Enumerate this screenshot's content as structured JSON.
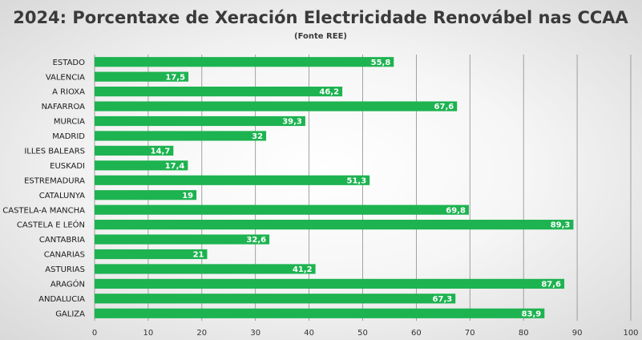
{
  "chart_data": {
    "type": "bar",
    "orientation": "horizontal",
    "title": "2024: Porcentaxe de Xeración Electricidade Renovábel nas CCAA",
    "subtitle": "(Fonte REE)",
    "categories": [
      "ESTADO",
      "VALENCIA",
      "A RIOXA",
      "NAFARROA",
      "MURCIA",
      "MADRID",
      "ILLES BALEARS",
      "EUSKADI",
      "ESTREMADURA",
      "CATALUNYA",
      "CASTELA-A MANCHA",
      "CASTELA E LEÓN",
      "CANTABRIA",
      "CANARIAS",
      "ASTURIAS",
      "ARAGÓN",
      "ANDALUCIA",
      "GALIZA"
    ],
    "values": [
      55.8,
      17.5,
      46.2,
      67.6,
      39.3,
      32,
      14.7,
      17.4,
      51.3,
      19,
      69.8,
      89.3,
      32.6,
      21,
      41.2,
      87.6,
      67.3,
      83.9
    ],
    "value_labels": [
      "55,8",
      "17,5",
      "46,2",
      "67,6",
      "39,3",
      "32",
      "14,7",
      "17,4",
      "51,3",
      "19",
      "69,8",
      "89,3",
      "32,6",
      "21",
      "41,2",
      "87,6",
      "67,3",
      "83,9"
    ],
    "xlim": [
      0,
      100
    ],
    "xticks": [
      0,
      10,
      20,
      30,
      40,
      50,
      60,
      70,
      80,
      90,
      100
    ],
    "xlabel": "",
    "ylabel": "",
    "grid": "vertical",
    "legend": "none",
    "bar_color": "#1db350"
  }
}
